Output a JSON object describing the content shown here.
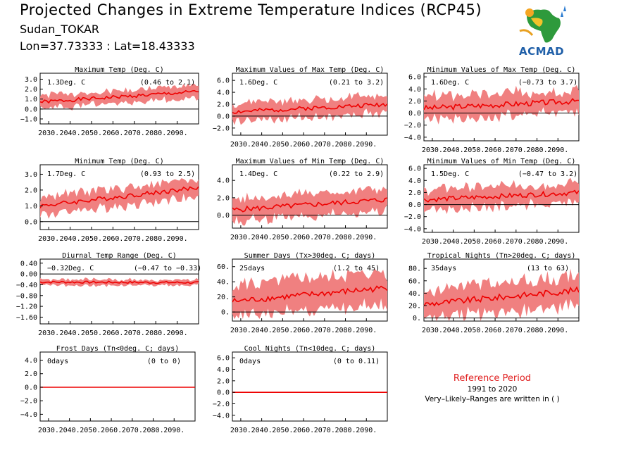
{
  "header": {
    "title": "Projected Changes in Extreme Temperature Indices (RCP45)",
    "station": "Sudan_TOKAR",
    "coords": "Lon=37.73333 : Lat=18.43333"
  },
  "logo": {
    "text": "ACMAD",
    "icon": "africa-map-logo-icon"
  },
  "reference": {
    "title": "Reference Period",
    "years": "1991 to 2020",
    "note": "Very–Likely–Ranges are written in ( )"
  },
  "colors": {
    "band": "#f08080",
    "line": "#ee0000",
    "zero": "#000000",
    "accent": "#e02020"
  },
  "chart_data": [
    {
      "type": "area",
      "title": "Maximum Temp (Deg. C)",
      "summary": "1.3Deg. C",
      "range": "(0.46 to 2.1)",
      "x": [
        2026,
        2100
      ],
      "xticks": [
        "2030.",
        "2040.",
        "2050.",
        "2060.",
        "2070.",
        "2080.",
        "2090."
      ],
      "yticks": [
        "3.0",
        "2.0",
        "1.0",
        "0.0",
        "−1.0"
      ],
      "ylim": [
        -1.5,
        3.6
      ],
      "start": 0.7,
      "end": 1.75,
      "half": 0.6,
      "noise": 0.18,
      "seed": 1
    },
    {
      "type": "area",
      "title": "Maximum Values of Max Temp (Deg. C)",
      "summary": "1.6Deg. C",
      "range": "(0.21 to 3.2)",
      "x": [
        2026,
        2100
      ],
      "xticks": [
        "2030.",
        "2040.",
        "2050.",
        "2060.",
        "2070.",
        "2080.",
        "2090."
      ],
      "yticks": [
        "6.0",
        "4.0",
        "2.0",
        "0.0",
        "−2.0"
      ],
      "ylim": [
        -3.2,
        7.2
      ],
      "start": 0.7,
      "end": 2.0,
      "half": 1.4,
      "noise": 0.35,
      "seed": 2
    },
    {
      "type": "area",
      "title": "Minimum Values of Max Temp (Deg. C)",
      "summary": "1.6Deg. C",
      "range": "(−0.73 to 3.7)",
      "x": [
        2026,
        2100
      ],
      "xticks": [
        "2030.",
        "2040.",
        "2050.",
        "2060.",
        "2070.",
        "2080.",
        "2090."
      ],
      "yticks": [
        "6.0",
        "4.0",
        "2.0",
        "0.0",
        "−2.0",
        "−4.0"
      ],
      "ylim": [
        -4.6,
        6.6
      ],
      "start": 0.8,
      "end": 2.0,
      "half": 1.8,
      "noise": 0.45,
      "seed": 3
    },
    {
      "type": "area",
      "title": "Minimum Temp (Deg. C)",
      "summary": "1.7Deg. C",
      "range": "(0.93 to 2.5)",
      "x": [
        2026,
        2100
      ],
      "xticks": [
        "2030.",
        "2040.",
        "2050.",
        "2060.",
        "2070.",
        "2080.",
        "2090."
      ],
      "yticks": [
        "3.0",
        "2.0",
        "1.0",
        "0.0"
      ],
      "ylim": [
        -0.5,
        3.6
      ],
      "start": 1.0,
      "end": 2.15,
      "half": 0.55,
      "noise": 0.15,
      "seed": 4
    },
    {
      "type": "area",
      "title": "Maximum Values of Min Temp (Deg. C)",
      "summary": "1.4Deg. C",
      "range": "(0.22 to 2.9)",
      "x": [
        2026,
        2100
      ],
      "xticks": [
        "2030.",
        "2040.",
        "2050.",
        "2060.",
        "2070.",
        "2080.",
        "2090."
      ],
      "yticks": [
        "4.0",
        "2.0",
        "0.0"
      ],
      "ylim": [
        -1.5,
        5.8
      ],
      "start": 0.6,
      "end": 1.8,
      "half": 1.2,
      "noise": 0.3,
      "seed": 5
    },
    {
      "type": "area",
      "title": "Minimum Values of Min Temp (Deg. C)",
      "summary": "1.5Deg. C",
      "range": "(−0.47 to 3.2)",
      "x": [
        2026,
        2100
      ],
      "xticks": [
        "2030.",
        "2040.",
        "2050.",
        "2060.",
        "2070.",
        "2080.",
        "2090."
      ],
      "yticks": [
        "6.0",
        "4.0",
        "2.0",
        "0.0",
        "−2.0",
        "−4.0"
      ],
      "ylim": [
        -4.6,
        6.6
      ],
      "start": 0.8,
      "end": 2.0,
      "half": 1.6,
      "noise": 0.4,
      "seed": 6
    },
    {
      "type": "area",
      "title": "Diurnal Temp Range (Deg. C)",
      "summary": "−0.32Deg. C",
      "range": "(−0.47 to −0.33)",
      "x": [
        2026,
        2100
      ],
      "xticks": [
        "2030.",
        "2040.",
        "2050.",
        "2060.",
        "2070.",
        "2080.",
        "2090."
      ],
      "yticks": [
        "0.40",
        "0.00",
        "−0.40",
        "−0.80",
        "−1.20",
        "−1.60"
      ],
      "ylim": [
        -1.85,
        0.55
      ],
      "start": -0.3,
      "end": -0.32,
      "half": 0.1,
      "noise": 0.04,
      "seed": 7
    },
    {
      "type": "area",
      "title": "Summer Days (Tx>30deg. C; days)",
      "summary": "25days",
      "range": "(1.2 to 45)",
      "x": [
        2026,
        2100
      ],
      "xticks": [
        "2030.",
        "2040.",
        "2050.",
        "2060.",
        "2070.",
        "2080.",
        "2090."
      ],
      "yticks": [
        "60.",
        "40.",
        "20.",
        "0."
      ],
      "ylim": [
        -12,
        70
      ],
      "start": 14,
      "end": 32,
      "half": 20,
      "noise": 4,
      "seed": 8
    },
    {
      "type": "area",
      "title": "Tropical Nights (Tn>20deg. C; days)",
      "summary": "35days",
      "range": "(13 to 63)",
      "x": [
        2026,
        2100
      ],
      "xticks": [
        "2030.",
        "2040.",
        "2050.",
        "2060.",
        "2070.",
        "2080.",
        "2090."
      ],
      "yticks": [
        "80.",
        "60.",
        "40.",
        "20.",
        "0."
      ],
      "ylim": [
        -5,
        95
      ],
      "start": 22,
      "end": 45,
      "half": 22,
      "noise": 5,
      "seed": 9
    },
    {
      "type": "area",
      "title": "Frost Days (Tn<0deg. C; days)",
      "summary": "0days",
      "range": "(0 to 0)",
      "x": [
        2026,
        2100
      ],
      "xticks": [
        "2030.",
        "2040.",
        "2050.",
        "2060.",
        "2070.",
        "2080.",
        "2090."
      ],
      "yticks": [
        "4.0",
        "2.0",
        "0.0",
        "−2.0",
        "−4.0"
      ],
      "ylim": [
        -5,
        5.2
      ],
      "start": 0,
      "end": 0,
      "half": 0,
      "noise": 0,
      "seed": 10
    },
    {
      "type": "area",
      "title": "Cool Nights (Tn<10deg. C; days)",
      "summary": "0days",
      "range": "(0 to 0.11)",
      "x": [
        2026,
        2100
      ],
      "xticks": [
        "2030.",
        "2040.",
        "2050.",
        "2060.",
        "2070.",
        "2080.",
        "2090."
      ],
      "yticks": [
        "6.0",
        "4.0",
        "2.0",
        "0.0",
        "−2.0",
        "−4.0"
      ],
      "ylim": [
        -5,
        7
      ],
      "start": 0,
      "end": 0,
      "half": 0,
      "noise": 0,
      "seed": 11
    }
  ]
}
